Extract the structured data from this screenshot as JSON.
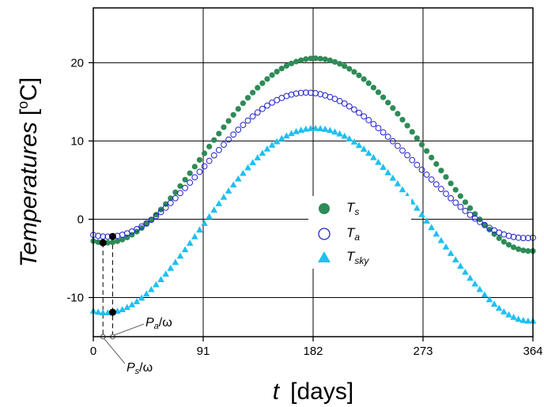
{
  "chart_data": {
    "type": "scatter",
    "xlabel": {
      "symbol": "t",
      "unit": "[days]"
    },
    "ylabel": {
      "main": "Temperatures",
      "unit_open": "[",
      "unit_sup": "o",
      "unit_rest": "C]"
    },
    "xlim": [
      0,
      364
    ],
    "ylim": [
      -15,
      27
    ],
    "x_ticks": [
      0,
      91,
      182,
      273,
      364
    ],
    "y_ticks": [
      -10,
      0,
      10,
      20
    ],
    "grid": true,
    "legend_position": "center-right",
    "x": [
      0,
      4,
      8,
      12,
      16,
      20,
      24,
      28,
      32,
      36,
      40,
      44,
      48,
      52,
      56,
      60,
      64,
      68,
      72,
      76,
      80,
      84,
      88,
      92,
      96,
      100,
      104,
      108,
      112,
      116,
      120,
      124,
      128,
      132,
      136,
      140,
      144,
      148,
      152,
      156,
      160,
      164,
      168,
      172,
      176,
      180,
      184,
      188,
      192,
      196,
      200,
      204,
      208,
      212,
      216,
      220,
      224,
      228,
      232,
      236,
      240,
      244,
      248,
      252,
      256,
      260,
      264,
      268,
      272,
      276,
      280,
      284,
      288,
      292,
      296,
      300,
      304,
      308,
      312,
      316,
      320,
      324,
      328,
      332,
      336,
      340,
      344,
      348,
      352,
      356,
      360,
      364
    ],
    "series": [
      {
        "name_main": "T",
        "name_sub": "s",
        "marker": "filled-circle",
        "color": "#2e8b57",
        "values": [
          -2.78,
          -2.92,
          -3.0,
          -3.0,
          -2.94,
          -2.8,
          -2.6,
          -2.32,
          -1.98,
          -1.58,
          -1.12,
          -0.6,
          -0.04,
          0.58,
          1.24,
          1.94,
          2.68,
          3.44,
          4.24,
          5.06,
          5.88,
          6.72,
          7.58,
          8.42,
          9.28,
          10.12,
          10.94,
          11.76,
          12.56,
          13.34,
          14.1,
          14.82,
          15.52,
          16.18,
          16.8,
          17.38,
          17.92,
          18.42,
          18.86,
          19.26,
          19.6,
          19.9,
          20.14,
          20.32,
          20.46,
          20.54,
          20.56,
          20.52,
          20.44,
          20.3,
          20.1,
          19.86,
          19.56,
          19.22,
          18.82,
          18.38,
          17.9,
          17.38,
          16.82,
          16.22,
          15.58,
          14.9,
          14.2,
          13.48,
          12.72,
          11.96,
          11.16,
          10.36,
          9.54,
          8.72,
          7.88,
          7.06,
          6.22,
          5.4,
          4.58,
          3.76,
          2.96,
          2.18,
          1.42,
          0.68,
          -0.02,
          -0.7,
          -1.32,
          -1.9,
          -2.42,
          -2.88,
          -3.26,
          -3.58,
          -3.82,
          -3.98,
          -4.06,
          -4.06
        ]
      },
      {
        "name_main": "T",
        "name_sub": "a",
        "marker": "open-circle",
        "color": "#2222cc",
        "values": [
          -2.0,
          -2.12,
          -2.2,
          -2.22,
          -2.2,
          -2.12,
          -1.98,
          -1.8,
          -1.56,
          -1.26,
          -0.92,
          -0.52,
          -0.08,
          0.4,
          0.92,
          1.48,
          2.08,
          2.7,
          3.34,
          4.0,
          4.68,
          5.36,
          6.06,
          6.76,
          7.46,
          8.16,
          8.84,
          9.52,
          10.18,
          10.82,
          11.44,
          12.04,
          12.6,
          13.14,
          13.64,
          14.1,
          14.52,
          14.9,
          15.22,
          15.5,
          15.74,
          15.92,
          16.06,
          16.14,
          16.18,
          16.16,
          16.1,
          15.98,
          15.82,
          15.62,
          15.38,
          15.1,
          14.78,
          14.42,
          14.02,
          13.6,
          13.14,
          12.66,
          12.16,
          11.64,
          11.1,
          10.54,
          9.96,
          9.38,
          8.78,
          8.18,
          7.56,
          6.94,
          6.32,
          5.7,
          5.08,
          4.46,
          3.86,
          3.26,
          2.68,
          2.12,
          1.58,
          1.06,
          0.56,
          0.1,
          -0.34,
          -0.74,
          -1.1,
          -1.42,
          -1.7,
          -1.94,
          -2.12,
          -2.26,
          -2.36,
          -2.4,
          -2.4,
          -2.36
        ]
      },
      {
        "name_main": "T",
        "name_sub": "sky",
        "marker": "filled-triangle",
        "color": "#1ec0f0",
        "values": [
          -11.72,
          -11.86,
          -11.94,
          -11.94,
          -11.88,
          -11.74,
          -11.54,
          -11.26,
          -10.92,
          -10.52,
          -10.06,
          -9.54,
          -8.98,
          -8.36,
          -7.7,
          -7.0,
          -6.26,
          -5.5,
          -4.7,
          -3.88,
          -3.06,
          -2.22,
          -1.36,
          -0.52,
          0.34,
          1.18,
          2.0,
          2.82,
          3.62,
          4.4,
          5.16,
          5.88,
          6.58,
          7.24,
          7.86,
          8.44,
          8.98,
          9.48,
          9.92,
          10.32,
          10.66,
          10.96,
          11.2,
          11.38,
          11.52,
          11.6,
          11.62,
          11.58,
          11.5,
          11.36,
          11.16,
          10.92,
          10.62,
          10.28,
          9.88,
          9.44,
          8.96,
          8.44,
          7.88,
          7.28,
          6.64,
          5.96,
          5.26,
          4.54,
          3.78,
          3.02,
          2.22,
          1.42,
          0.6,
          -0.22,
          -1.06,
          -1.88,
          -2.72,
          -3.54,
          -4.36,
          -5.18,
          -5.98,
          -6.76,
          -7.52,
          -8.26,
          -8.96,
          -9.64,
          -10.26,
          -10.84,
          -11.36,
          -11.82,
          -12.2,
          -12.52,
          -12.76,
          -12.92,
          -13.0,
          -13.0
        ]
      }
    ],
    "annotations": {
      "pa": {
        "main": "P",
        "sub": "a",
        "tail": "/ω",
        "x": 16
      },
      "ps": {
        "main": "P",
        "sub": "s",
        "tail": "/ω",
        "x": 8
      }
    }
  }
}
